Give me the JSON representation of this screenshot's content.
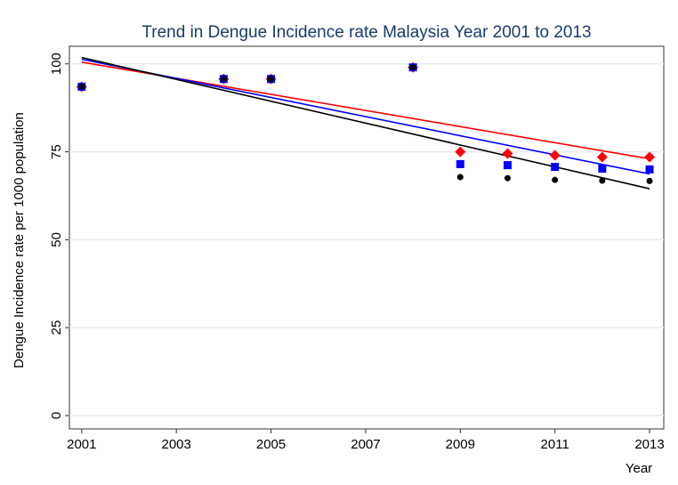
{
  "chart_data": {
    "type": "scatter",
    "title": "Trend in Dengue Incidence rate Malaysia Year 2001 to 2013",
    "x_label": "Year",
    "y_label": "Dengue Incidence rate per 1000 population",
    "x": [
      2001,
      2004,
      2005,
      2008,
      2009,
      2010,
      2011,
      2012,
      2013
    ],
    "series": [
      {
        "color": "#ff0000",
        "marker": "diamond",
        "values": [
          93.5,
          95.7,
          95.7,
          99,
          75,
          74.5,
          74,
          73.5,
          73.5
        ]
      },
      {
        "color": "#0000ff",
        "marker": "square",
        "values": [
          93.5,
          95.7,
          95.7,
          99,
          71.5,
          71.2,
          70.7,
          70.2,
          70
        ]
      },
      {
        "color": "#000000",
        "marker": "circle",
        "values": [
          93.5,
          95.7,
          95.7,
          99,
          67.8,
          67.5,
          67,
          66.8,
          66.7
        ]
      }
    ],
    "fit_lines": [
      {
        "color": "#ff0000",
        "x": [
          2001,
          2013
        ],
        "values": [
          100.5,
          73
        ]
      },
      {
        "color": "#0000ff",
        "x": [
          2001,
          2013
        ],
        "values": [
          101.3,
          68.7
        ]
      },
      {
        "color": "#000000",
        "x": [
          2001,
          2013
        ],
        "values": [
          101.8,
          64.5
        ]
      }
    ],
    "xlim": [
      2000.74,
      2013.3
    ],
    "ylim": [
      -3.8,
      105
    ],
    "xticks": [
      2001,
      2003,
      2005,
      2007,
      2009,
      2011,
      2013
    ],
    "yticks": [
      0,
      25,
      50,
      75,
      100
    ],
    "grid": true
  }
}
